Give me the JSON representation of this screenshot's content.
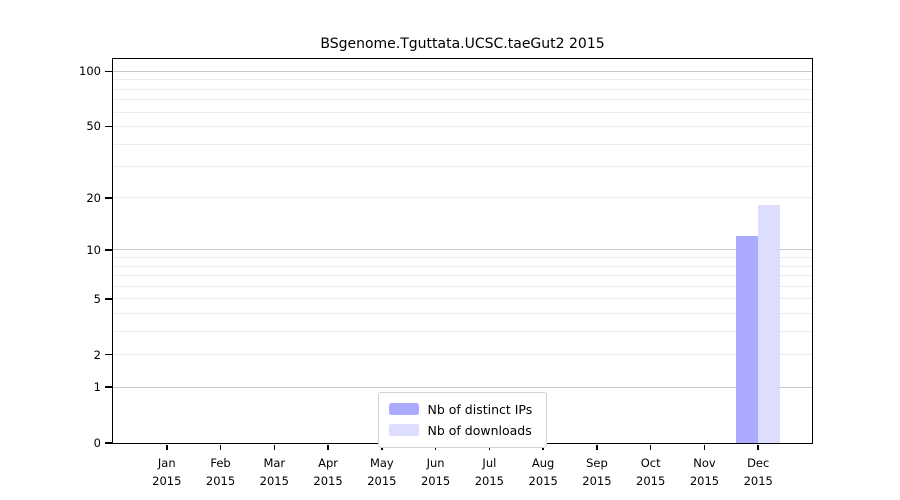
{
  "chart_data": {
    "type": "bar",
    "title": "BSgenome.Tguttata.UCSC.taeGut2 2015",
    "scale": "log1p",
    "categories": [
      "Jan",
      "Feb",
      "Mar",
      "Apr",
      "May",
      "Jun",
      "Jul",
      "Aug",
      "Sep",
      "Oct",
      "Nov",
      "Dec"
    ],
    "year": "2015",
    "series": [
      {
        "name": "Nb of distinct IPs",
        "color": "#aaaaff",
        "values": [
          0,
          0,
          0,
          0,
          0,
          0,
          0,
          0,
          0,
          0,
          0,
          12
        ]
      },
      {
        "name": "Nb of downloads",
        "color": "#ddddff",
        "values": [
          0,
          0,
          0,
          0,
          0,
          0,
          0,
          0,
          0,
          0,
          0,
          18
        ]
      }
    ],
    "ylabel_ticks": [
      0,
      1,
      2,
      5,
      10,
      20,
      50,
      100
    ],
    "major_gridlines": [
      1,
      10,
      100
    ],
    "minor_gridlines": [
      2,
      3,
      4,
      5,
      6,
      7,
      8,
      9,
      20,
      30,
      40,
      50,
      60,
      70,
      80,
      90
    ],
    "ylim": [
      0,
      117
    ],
    "grid": "on",
    "legend_position": "lower center",
    "colors": {
      "distinct_ips_bar": "#aaaaff",
      "downloads_bar": "#ddddff",
      "major_grid": "#c9c9c9",
      "minor_grid": "#ededed",
      "axis": "#000000",
      "legend_border": "#d2d2d2"
    }
  }
}
